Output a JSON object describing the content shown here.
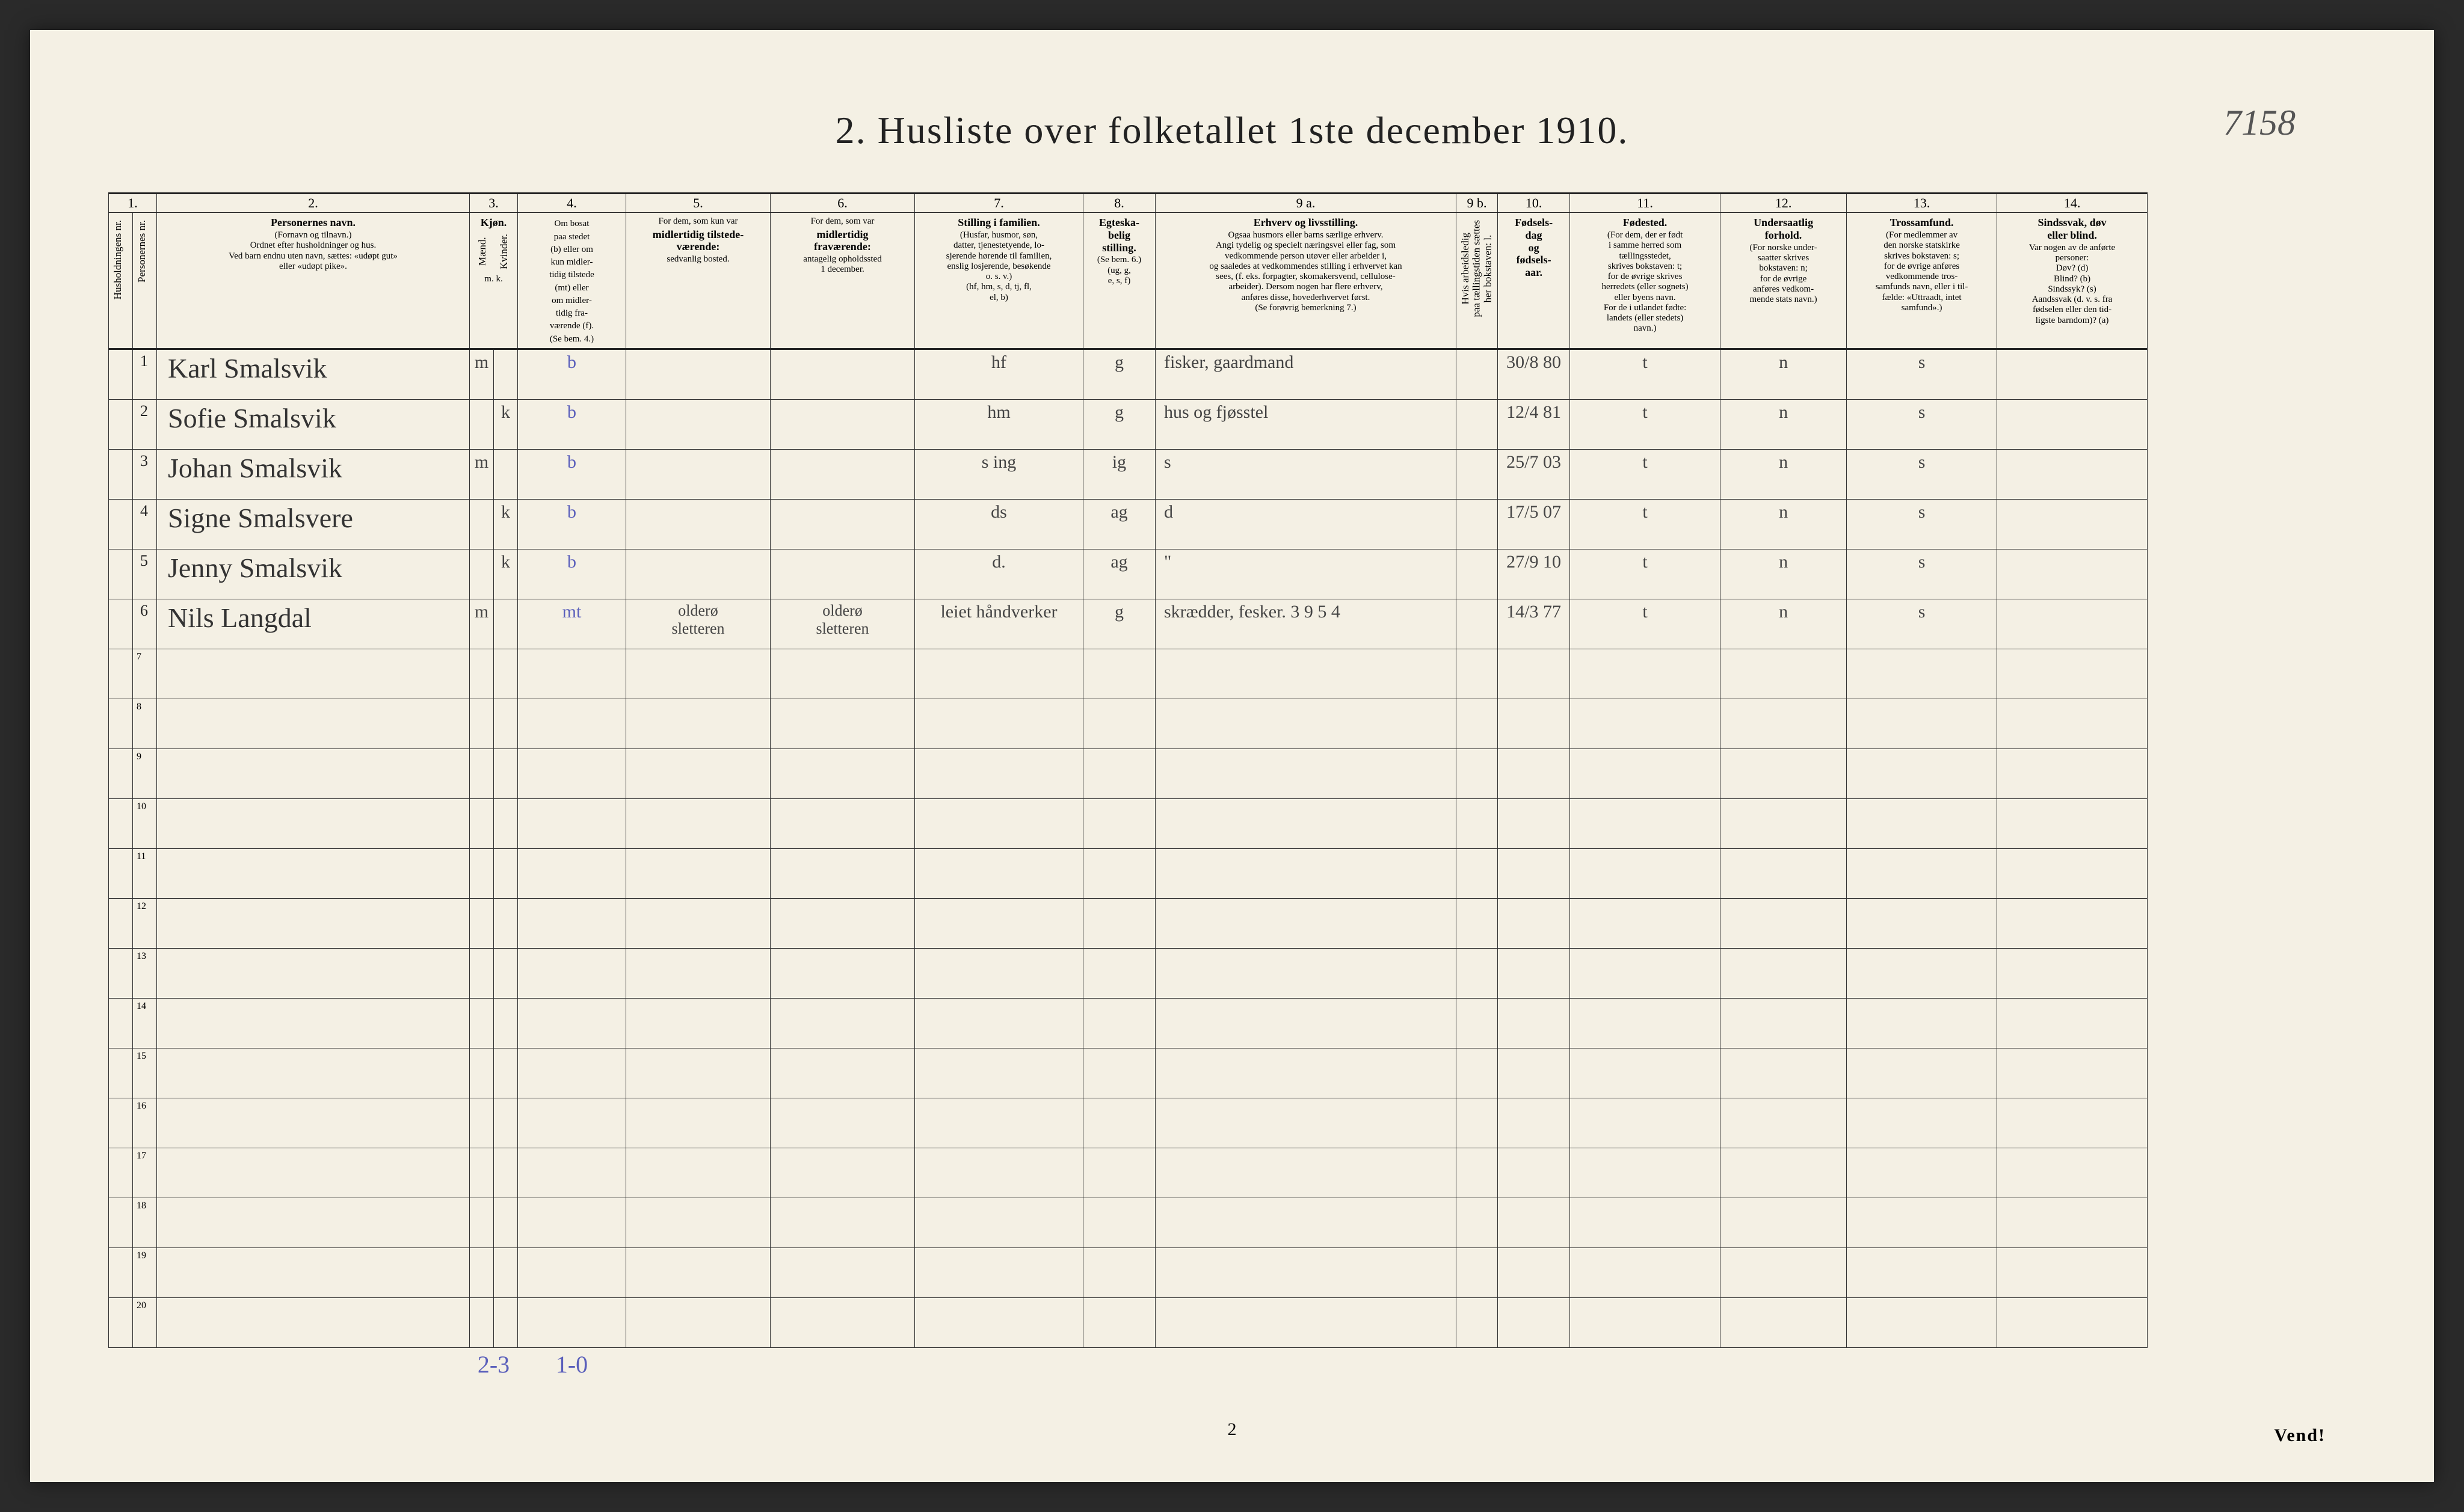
{
  "title": "2.  Husliste over folketallet 1ste december 1910.",
  "topright_note": "7158",
  "page_number": "2",
  "vend": "Vend!",
  "colnums": [
    "1.",
    "2.",
    "3.",
    "4.",
    "5.",
    "6.",
    "7.",
    "8.",
    "9 a.",
    "9 b.",
    "10.",
    "11.",
    "12.",
    "13.",
    "14."
  ],
  "headers": {
    "c1a": "Husholdningens nr.",
    "c1b": "Personernes nr.",
    "c2_title": "Personernes navn.",
    "c2_sub": "(Fornavn og tilnavn.)\nOrdnet efter husholdninger og hus.\nVed barn endnu uten navn, sættes: «udøpt gut»\neller «udøpt pike».",
    "c3_title": "Kjøn.",
    "c3_sub1": "Mænd.",
    "c3_sub2": "Kvinder.",
    "c3_foot": "m.  k.",
    "c4_title": "Om bosat\npaa stedet\n(b) eller om\nkun midler-\ntidig tilstede\n(mt) eller\nom midler-\ntidig fra-\nværende (f).\n(Se bem. 4.)",
    "c5_title": "For dem, som kun var",
    "c5_bold": "midlertidig tilstede-\nværende:",
    "c5_sub": "sedvanlig bosted.",
    "c6_title": "For dem, som var",
    "c6_bold": "midlertidig\nfraværende:",
    "c6_sub": "antagelig opholdssted\n1 december.",
    "c7_title": "Stilling i familien.",
    "c7_sub": "(Husfar, husmor, søn,\ndatter, tjenestetyende, lo-\nsjerende hørende til familien,\nenslig losjerende, besøkende\no. s. v.)\n(hf, hm, s, d, tj, fl,\nel, b)",
    "c8_title": "Egteska-\nbelig\nstilling.",
    "c8_sub": "(Se bem. 6.)\n(ug, g,\ne, s, f)",
    "c9a_title": "Erhverv og livsstilling.",
    "c9a_sub": "Ogsaa husmors eller barns særlige erhverv.\nAngi tydelig og specielt næringsvei eller fag, som\nvedkommende person utøver eller arbeider i,\nog saaledes at vedkommendes stilling i erhvervet kan\nsees, (f. eks. forpagter, skomakersvend, cellulose-\narbeider). Dersom nogen har flere erhverv,\nanføres disse, hovederhvervet først.\n(Se forøvrig bemerkning 7.)",
    "c9b_title": "Hvis arbeidsledig\npaa tællingstiden sættes\nher bokstaven: l.",
    "c10_title": "Fødsels-\ndag\nog\nfødsels-\naar.",
    "c11_title": "Fødested.",
    "c11_sub": "(For dem, der er født\ni samme herred som\ntællingsstedet,\nskrives bokstaven: t;\nfor de øvrige skrives\nherredets (eller sognets)\neller byens navn.\nFor de i utlandet fødte:\nlandets (eller stedets)\nnavn.)",
    "c12_title": "Undersaatlig\nforhold.",
    "c12_sub": "(For norske under-\nsaatter skrives\nbokstaven: n;\nfor de øvrige\nanføres vedkom-\nmende stats navn.)",
    "c13_title": "Trossamfund.",
    "c13_sub": "(For medlemmer av\nden norske statskirke\nskrives bokstaven: s;\nfor de øvrige anføres\nvedkommende tros-\nsamfunds navn, eller i til-\nfælde: «Uttraadt, intet\nsamfund».)",
    "c14_title": "Sindssvak, døv\neller blind.",
    "c14_sub": "Var nogen av de anførte\npersoner:\nDøv?        (d)\nBlind?      (b)\nSindssyk?  (s)\nAandssvak (d. v. s. fra\nfødselen eller den tid-\nligste barndom)? (a)"
  },
  "rows": [
    {
      "num": "1",
      "name": "Karl Smalsvik",
      "mk": "m",
      "kk": "",
      "c4": "b",
      "c5": "",
      "c6": "",
      "c7": "hf",
      "c8": "g",
      "c9a": "fisker, gaardmand",
      "c9b": "",
      "c10": "30/8 80",
      "c11": "t",
      "c12": "n",
      "c13": "s",
      "c14": ""
    },
    {
      "num": "2",
      "name": "Sofie Smalsvik",
      "mk": "",
      "kk": "k",
      "c4": "b",
      "c5": "",
      "c6": "",
      "c7": "hm",
      "c8": "g",
      "c9a": "hus og fjøsstel",
      "c9b": "",
      "c10": "12/4 81",
      "c11": "t",
      "c12": "n",
      "c13": "s",
      "c14": ""
    },
    {
      "num": "3",
      "name": "Johan Smalsvik",
      "mk": "m",
      "kk": "",
      "c4": "b",
      "c5": "",
      "c6": "",
      "c7": "s ing",
      "c8": "ig",
      "c9a": "s",
      "c9b": "",
      "c10": "25/7 03",
      "c11": "t",
      "c12": "n",
      "c13": "s",
      "c14": ""
    },
    {
      "num": "4",
      "name": "Signe Smalsvere",
      "mk": "",
      "kk": "k",
      "c4": "b",
      "c5": "",
      "c6": "",
      "c7": "ds",
      "c8": "ag",
      "c9a": "d",
      "c9b": "",
      "c10": "17/5 07",
      "c11": "t",
      "c12": "n",
      "c13": "s",
      "c14": ""
    },
    {
      "num": "5",
      "name": "Jenny Smalsvik",
      "mk": "",
      "kk": "k",
      "c4": "b",
      "c5": "",
      "c6": "",
      "c7": "d.",
      "c8": "ag",
      "c9a": "\"",
      "c9b": "",
      "c10": "27/9 10",
      "c11": "t",
      "c12": "n",
      "c13": "s",
      "c14": ""
    },
    {
      "num": "6",
      "name": "Nils Langdal",
      "mk": "m",
      "kk": "",
      "c4": "mt",
      "c5": "olderø\nsletteren",
      "c6": "olderø\nsletteren",
      "c7": "leiet håndverker",
      "c8": "g",
      "c9a": "skrædder, fesker.   3 9 5 4",
      "c9b": "",
      "c10": "14/3 77",
      "c11": "t",
      "c12": "n",
      "c13": "s",
      "c14": ""
    }
  ],
  "empty_rows_start": 7,
  "empty_rows_end": 20,
  "summary": {
    "col3": "2-3",
    "col4": "1-0"
  }
}
